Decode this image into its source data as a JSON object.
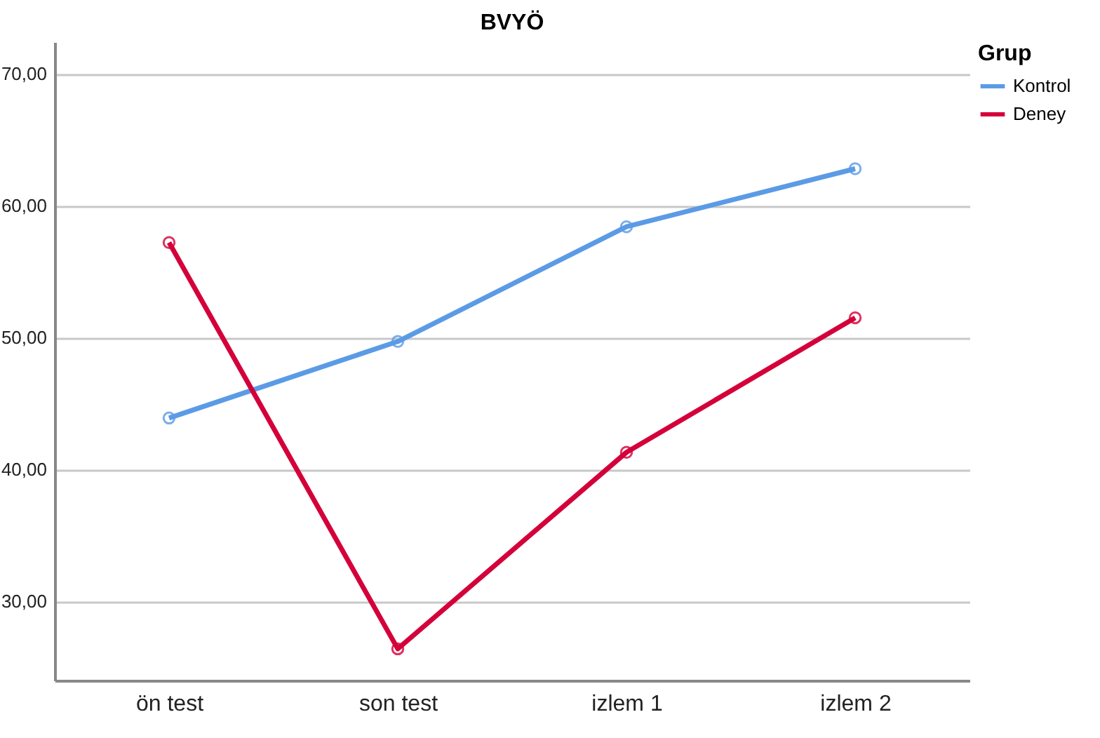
{
  "chart_data": {
    "type": "line",
    "title": "BVYÖ",
    "legend_title": "Grup",
    "categories": [
      "ön test",
      "son test",
      "izlem 1",
      "izlem 2"
    ],
    "series": [
      {
        "name": "Kontrol",
        "color": "#5b9be6",
        "values": [
          43.9,
          49.7,
          58.4,
          62.8
        ]
      },
      {
        "name": "Deney",
        "color": "#d4003a",
        "values": [
          57.2,
          26.4,
          41.3,
          51.5
        ]
      }
    ],
    "ylim": [
      24,
      72.4
    ],
    "yticks": [
      {
        "value": 30,
        "label": "30,00"
      },
      {
        "value": 40,
        "label": "40,00"
      },
      {
        "value": 50,
        "label": "50,00"
      },
      {
        "value": 60,
        "label": "60,00"
      },
      {
        "value": 70,
        "label": "70,00"
      }
    ],
    "grid": "y",
    "legend": "top right",
    "marker": "circle",
    "line_style": "solid"
  }
}
